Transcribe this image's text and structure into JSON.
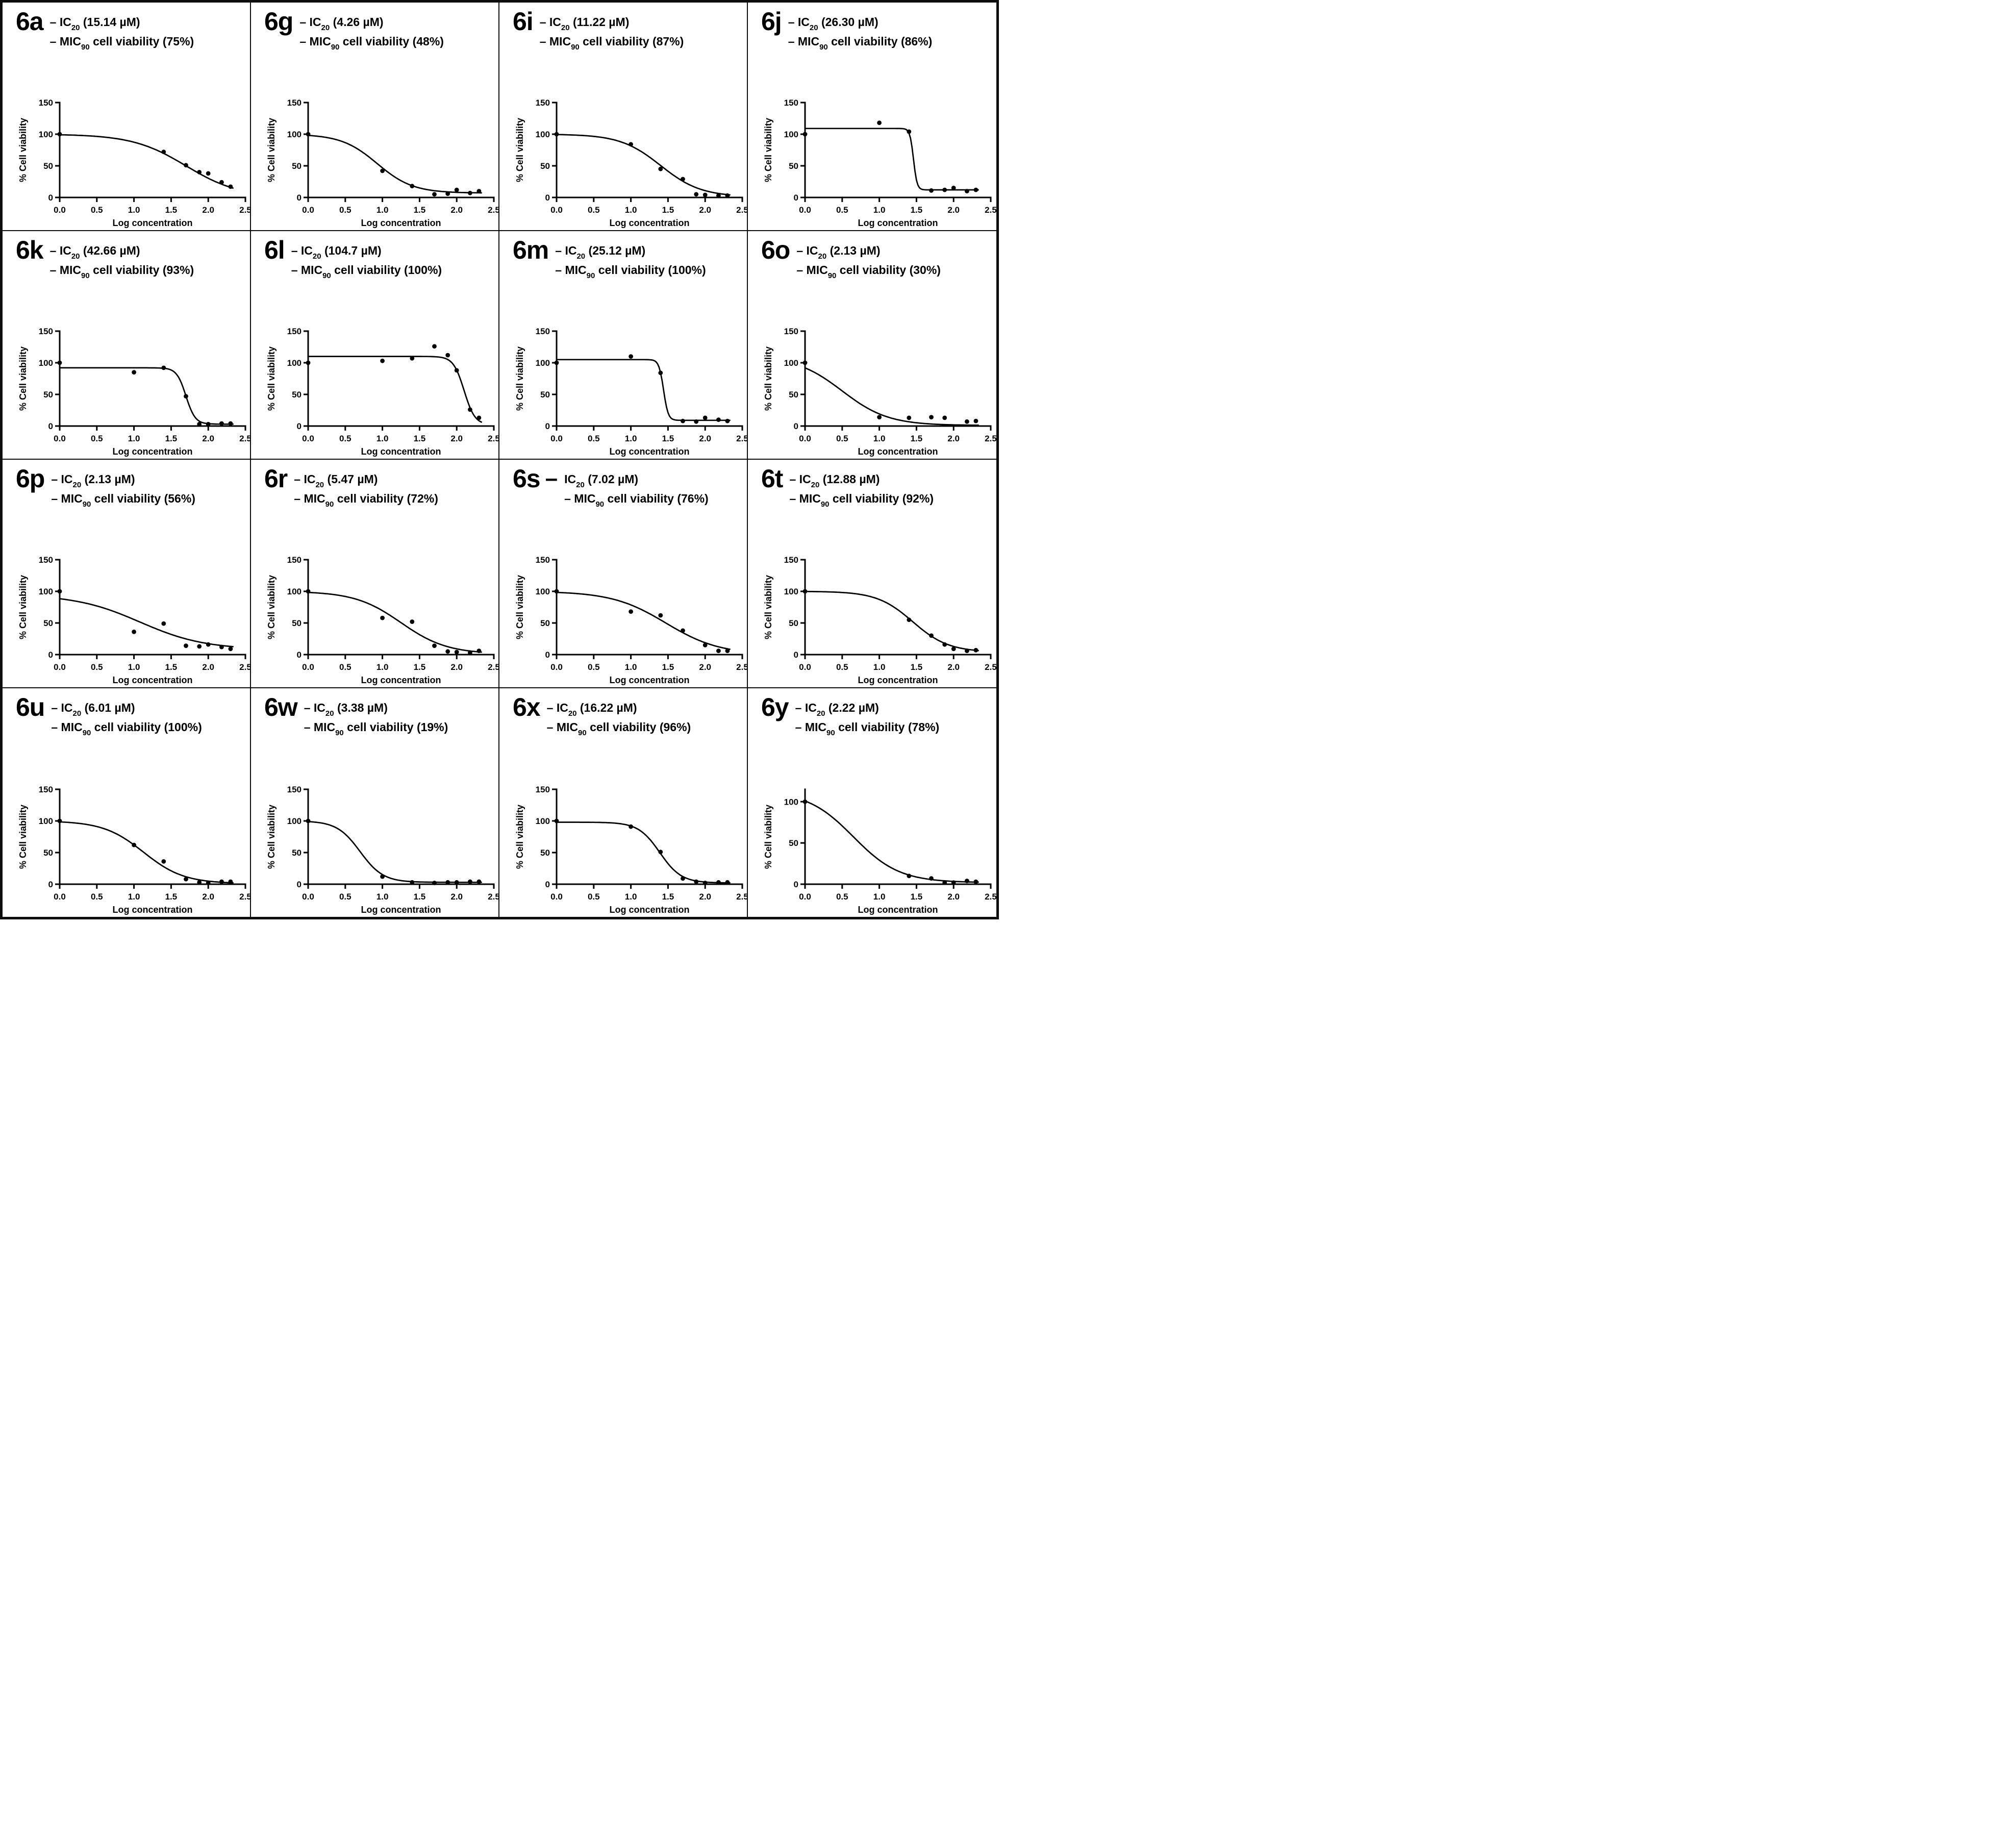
{
  "figure": {
    "background": "#ffffff",
    "border_color": "#0d0d0d",
    "layout": {
      "rows": 4,
      "cols": 4
    },
    "xlabel": "Log concentration",
    "ylabel": "% Cell viability",
    "x_ticks": [
      "0.0",
      "0.5",
      "1.0",
      "1.5",
      "2.0",
      "2.5"
    ],
    "x_range": [
      0,
      2.5
    ],
    "dash": "–",
    "ic_prefix": "IC",
    "ic_sub": "20",
    "mic_prefix": "MIC",
    "mic_sub": "90",
    "mic_text": "cell viability"
  },
  "chart_data": [
    {
      "id": "6a",
      "type": "scatter+curve",
      "ic20_value": "15.14 µM",
      "mic90_value": "75%",
      "big_dash": false,
      "y_ticks": [
        0,
        50,
        100,
        150
      ],
      "y_axis_max": 150,
      "points": [
        [
          0,
          100
        ],
        [
          1.4,
          72
        ],
        [
          1.7,
          51
        ],
        [
          1.88,
          40
        ],
        [
          2.0,
          38
        ],
        [
          2.18,
          24
        ],
        [
          2.3,
          17
        ]
      ],
      "curve_fit": {
        "top": 100,
        "bottom": 0,
        "logec50": 1.7,
        "hill": 1.2
      }
    },
    {
      "id": "6g",
      "type": "scatter+curve",
      "ic20_value": "4.26 µM",
      "mic90_value": "48%",
      "big_dash": false,
      "y_ticks": [
        0,
        50,
        100,
        150
      ],
      "y_axis_max": 150,
      "points": [
        [
          0,
          100
        ],
        [
          1.0,
          42
        ],
        [
          1.4,
          18
        ],
        [
          1.7,
          5
        ],
        [
          1.88,
          6
        ],
        [
          2.0,
          12
        ],
        [
          2.18,
          7
        ],
        [
          2.3,
          10
        ]
      ],
      "curve_fit": {
        "top": 100,
        "bottom": 7,
        "logec50": 0.93,
        "hill": 1.8
      }
    },
    {
      "id": "6i",
      "type": "scatter+curve",
      "ic20_value": "11.22 µM",
      "mic90_value": "87%",
      "big_dash": false,
      "y_ticks": [
        0,
        50,
        100,
        150
      ],
      "y_axis_max": 150,
      "points": [
        [
          0,
          100
        ],
        [
          1.0,
          84
        ],
        [
          1.4,
          45
        ],
        [
          1.7,
          29
        ],
        [
          1.88,
          5
        ],
        [
          2.0,
          4
        ],
        [
          2.18,
          3
        ],
        [
          2.3,
          3
        ]
      ],
      "curve_fit": {
        "top": 100,
        "bottom": 1,
        "logec50": 1.4,
        "hill": 1.6
      }
    },
    {
      "id": "6j",
      "type": "scatter+curve",
      "ic20_value": "26.30 µM",
      "mic90_value": "86%",
      "big_dash": false,
      "y_ticks": [
        0,
        50,
        100,
        150
      ],
      "y_axis_max": 150,
      "points": [
        [
          0,
          100
        ],
        [
          1.0,
          118
        ],
        [
          1.4,
          104
        ],
        [
          1.7,
          11
        ],
        [
          1.88,
          12
        ],
        [
          2.0,
          15
        ],
        [
          2.18,
          10
        ],
        [
          2.3,
          12
        ]
      ],
      "curve_fit": {
        "top": 109,
        "bottom": 12,
        "logec50": 1.46,
        "hill": 18
      }
    },
    {
      "id": "6k",
      "type": "scatter+curve",
      "ic20_value": "42.66 µM",
      "mic90_value": "93%",
      "big_dash": false,
      "y_ticks": [
        0,
        50,
        100,
        150
      ],
      "y_axis_max": 150,
      "points": [
        [
          0,
          100
        ],
        [
          1.0,
          85
        ],
        [
          1.4,
          92
        ],
        [
          1.7,
          47
        ],
        [
          1.88,
          3
        ],
        [
          2.0,
          3
        ],
        [
          2.18,
          4
        ],
        [
          2.3,
          4
        ]
      ],
      "curve_fit": {
        "top": 92,
        "bottom": 3,
        "logec50": 1.7,
        "hill": 7
      }
    },
    {
      "id": "6l",
      "type": "scatter+curve",
      "ic20_value": "104.7 µM",
      "mic90_value": "100%",
      "big_dash": false,
      "y_ticks": [
        0,
        50,
        100,
        150
      ],
      "y_axis_max": 150,
      "points": [
        [
          0,
          100
        ],
        [
          1.0,
          103
        ],
        [
          1.4,
          107
        ],
        [
          1.7,
          126
        ],
        [
          1.88,
          112
        ],
        [
          2.0,
          88
        ],
        [
          2.18,
          26
        ],
        [
          2.3,
          13
        ]
      ],
      "curve_fit": {
        "top": 110,
        "bottom": 2,
        "logec50": 2.1,
        "hill": 6
      }
    },
    {
      "id": "6m",
      "type": "scatter+curve",
      "ic20_value": "25.12 µM",
      "mic90_value": "100%",
      "big_dash": false,
      "y_ticks": [
        0,
        50,
        100,
        150
      ],
      "y_axis_max": 150,
      "points": [
        [
          0,
          100
        ],
        [
          1.0,
          110
        ],
        [
          1.4,
          84
        ],
        [
          1.7,
          8
        ],
        [
          1.88,
          7
        ],
        [
          2.0,
          13
        ],
        [
          2.18,
          10
        ],
        [
          2.3,
          8
        ]
      ],
      "curve_fit": {
        "top": 105,
        "bottom": 9,
        "logec50": 1.44,
        "hill": 14
      }
    },
    {
      "id": "6o",
      "type": "scatter+curve",
      "ic20_value": "2.13 µM",
      "mic90_value": "30%",
      "big_dash": false,
      "y_ticks": [
        0,
        50,
        100,
        150
      ],
      "y_axis_max": 150,
      "points": [
        [
          0,
          100
        ],
        [
          1.0,
          14
        ],
        [
          1.4,
          13
        ],
        [
          1.7,
          14
        ],
        [
          1.88,
          13
        ],
        [
          2.18,
          7
        ],
        [
          2.3,
          8
        ]
      ],
      "curve_fit": {
        "top": 110,
        "bottom": 1,
        "logec50": 0.5,
        "hill": 1.4
      }
    },
    {
      "id": "6p",
      "type": "scatter+curve",
      "ic20_value": "2.13 µM",
      "mic90_value": "56%",
      "big_dash": false,
      "y_ticks": [
        0,
        50,
        100,
        150
      ],
      "y_axis_max": 150,
      "points": [
        [
          0,
          100
        ],
        [
          1.0,
          36
        ],
        [
          1.4,
          49
        ],
        [
          1.7,
          14
        ],
        [
          1.88,
          13
        ],
        [
          2.0,
          16
        ],
        [
          2.18,
          12
        ],
        [
          2.3,
          9
        ]
      ],
      "curve_fit": {
        "top": 95,
        "bottom": 8,
        "logec50": 1.08,
        "hill": 1.0
      }
    },
    {
      "id": "6r",
      "type": "scatter+curve",
      "ic20_value": "5.47 µM",
      "mic90_value": "72%",
      "big_dash": false,
      "y_ticks": [
        0,
        50,
        100,
        150
      ],
      "y_axis_max": 150,
      "points": [
        [
          0,
          100
        ],
        [
          1.0,
          58
        ],
        [
          1.4,
          52
        ],
        [
          1.7,
          14
        ],
        [
          1.88,
          5
        ],
        [
          2.0,
          4
        ],
        [
          2.18,
          3
        ],
        [
          2.3,
          6
        ]
      ],
      "curve_fit": {
        "top": 100,
        "bottom": 1,
        "logec50": 1.25,
        "hill": 1.4
      }
    },
    {
      "id": "6s",
      "type": "scatter+curve",
      "ic20_value": "7.02 µM",
      "mic90_value": "76%",
      "big_dash": true,
      "y_ticks": [
        0,
        50,
        100,
        150
      ],
      "y_axis_max": 150,
      "points": [
        [
          0,
          100
        ],
        [
          1.0,
          68
        ],
        [
          1.4,
          62
        ],
        [
          1.7,
          38
        ],
        [
          2.0,
          15
        ],
        [
          2.18,
          6
        ],
        [
          2.3,
          6
        ]
      ],
      "curve_fit": {
        "top": 100,
        "bottom": 0,
        "logec50": 1.47,
        "hill": 1.2
      }
    },
    {
      "id": "6t",
      "type": "scatter+curve",
      "ic20_value": "12.88 µM",
      "mic90_value": "92%",
      "big_dash": false,
      "y_ticks": [
        0,
        50,
        100,
        150
      ],
      "y_axis_max": 150,
      "points": [
        [
          0,
          100
        ],
        [
          1.4,
          55
        ],
        [
          1.7,
          30
        ],
        [
          1.88,
          16
        ],
        [
          2.0,
          9
        ],
        [
          2.18,
          6
        ],
        [
          2.3,
          7
        ]
      ],
      "curve_fit": {
        "top": 100,
        "bottom": 4,
        "logec50": 1.45,
        "hill": 1.8
      }
    },
    {
      "id": "6u",
      "type": "scatter+curve",
      "ic20_value": "6.01 µM",
      "mic90_value": "100%",
      "big_dash": false,
      "y_ticks": [
        0,
        50,
        100,
        150
      ],
      "y_axis_max": 150,
      "points": [
        [
          0,
          100
        ],
        [
          1.0,
          62
        ],
        [
          1.4,
          36
        ],
        [
          1.7,
          8
        ],
        [
          1.88,
          3
        ],
        [
          2.0,
          2
        ],
        [
          2.18,
          4
        ],
        [
          2.3,
          4
        ]
      ],
      "curve_fit": {
        "top": 100,
        "bottom": 1,
        "logec50": 1.13,
        "hill": 1.6
      }
    },
    {
      "id": "6w",
      "type": "scatter+curve",
      "ic20_value": "3.38 µM",
      "mic90_value": "19%",
      "big_dash": false,
      "y_ticks": [
        0,
        50,
        100,
        150
      ],
      "y_axis_max": 150,
      "points": [
        [
          0,
          100
        ],
        [
          1.0,
          12
        ],
        [
          1.4,
          3
        ],
        [
          1.7,
          2
        ],
        [
          1.88,
          3
        ],
        [
          2.0,
          3
        ],
        [
          2.18,
          4
        ],
        [
          2.3,
          4
        ]
      ],
      "curve_fit": {
        "top": 100,
        "bottom": 3,
        "logec50": 0.7,
        "hill": 2.8
      }
    },
    {
      "id": "6x",
      "type": "scatter+curve",
      "ic20_value": "16.22 µM",
      "mic90_value": "96%",
      "big_dash": false,
      "y_ticks": [
        0,
        50,
        100,
        150
      ],
      "y_axis_max": 150,
      "points": [
        [
          0,
          100
        ],
        [
          1.0,
          91
        ],
        [
          1.4,
          51
        ],
        [
          1.7,
          9
        ],
        [
          1.88,
          4
        ],
        [
          2.0,
          2
        ],
        [
          2.18,
          3
        ],
        [
          2.3,
          3
        ]
      ],
      "curve_fit": {
        "top": 98,
        "bottom": 2,
        "logec50": 1.39,
        "hill": 3.0
      }
    },
    {
      "id": "6y",
      "type": "scatter+curve",
      "ic20_value": "2.22 µM",
      "mic90_value": "78%",
      "big_dash": false,
      "y_ticks": [
        0,
        50,
        100
      ],
      "y_axis_max": 115,
      "points": [
        [
          0,
          100
        ],
        [
          1.4,
          10
        ],
        [
          1.7,
          7
        ],
        [
          1.88,
          2
        ],
        [
          2.0,
          2
        ],
        [
          2.18,
          4
        ],
        [
          2.3,
          3
        ]
      ],
      "curve_fit": {
        "top": 113,
        "bottom": 2,
        "logec50": 0.65,
        "hill": 1.4
      }
    }
  ]
}
